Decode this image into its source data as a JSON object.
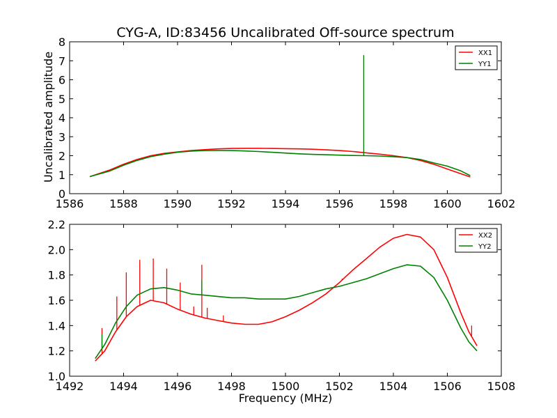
{
  "chart_data": [
    {
      "type": "line",
      "title": "CYG-A, ID:83456 Uncalibrated Off-source spectrum",
      "xlabel": "",
      "ylabel": "Uncalibrated amplitude",
      "xlim": [
        1586,
        1602
      ],
      "ylim": [
        0,
        8
      ],
      "xticks": [
        1586,
        1588,
        1590,
        1592,
        1594,
        1596,
        1598,
        1600,
        1602
      ],
      "yticks": [
        0,
        1,
        2,
        3,
        4,
        5,
        6,
        7,
        8
      ],
      "legend_position": "top-right",
      "grid": false,
      "series": [
        {
          "name": "XX1",
          "color": "#ff0000",
          "x": [
            1586.75,
            1587.5,
            1588.0,
            1588.5,
            1589.0,
            1589.5,
            1590.0,
            1590.5,
            1591.0,
            1591.5,
            1592.0,
            1592.5,
            1593.0,
            1593.5,
            1594.0,
            1594.5,
            1595.0,
            1595.5,
            1596.0,
            1596.5,
            1597.0,
            1597.5,
            1598.0,
            1598.5,
            1599.0,
            1599.5,
            1600.0,
            1600.5,
            1600.85
          ],
          "y": [
            0.9,
            1.25,
            1.55,
            1.8,
            2.0,
            2.12,
            2.2,
            2.27,
            2.32,
            2.36,
            2.38,
            2.39,
            2.39,
            2.38,
            2.37,
            2.36,
            2.34,
            2.31,
            2.27,
            2.22,
            2.15,
            2.08,
            2.0,
            1.9,
            1.75,
            1.55,
            1.3,
            1.05,
            0.88
          ],
          "spikes": []
        },
        {
          "name": "YY1",
          "color": "#008000",
          "x": [
            1586.75,
            1587.5,
            1588.0,
            1588.5,
            1589.0,
            1589.5,
            1590.0,
            1590.5,
            1591.0,
            1591.5,
            1592.0,
            1592.5,
            1593.0,
            1593.5,
            1594.0,
            1594.5,
            1595.0,
            1595.5,
            1596.0,
            1596.5,
            1597.0,
            1597.5,
            1598.0,
            1598.5,
            1599.0,
            1599.5,
            1600.0,
            1600.5,
            1600.85
          ],
          "y": [
            0.9,
            1.2,
            1.5,
            1.75,
            1.95,
            2.08,
            2.18,
            2.24,
            2.27,
            2.28,
            2.27,
            2.25,
            2.22,
            2.18,
            2.14,
            2.1,
            2.07,
            2.05,
            2.03,
            2.01,
            2.0,
            1.98,
            1.95,
            1.9,
            1.8,
            1.62,
            1.45,
            1.2,
            0.95
          ],
          "spikes": [
            {
              "x": 1596.9,
              "y": 7.3
            }
          ]
        }
      ]
    },
    {
      "type": "line",
      "title": "",
      "xlabel": "Frequency (MHz)",
      "ylabel": "",
      "xlim": [
        1492,
        1508
      ],
      "ylim": [
        1.0,
        2.2
      ],
      "xticks": [
        1492,
        1494,
        1496,
        1498,
        1500,
        1502,
        1504,
        1506,
        1508
      ],
      "yticks": [
        1.0,
        1.2,
        1.4,
        1.6,
        1.8,
        2.0,
        2.2
      ],
      "yticklabels": [
        "1.0",
        "1.2",
        "1.4",
        "1.6",
        "1.8",
        "2.0",
        "2.2"
      ],
      "legend_position": "top-right",
      "grid": false,
      "series": [
        {
          "name": "XX2",
          "color": "#ff0000",
          "x": [
            1492.95,
            1493.3,
            1493.7,
            1494.1,
            1494.5,
            1495.0,
            1495.5,
            1496.0,
            1496.5,
            1497.0,
            1497.5,
            1498.0,
            1498.5,
            1499.0,
            1499.5,
            1500.0,
            1500.5,
            1501.0,
            1501.5,
            1502.0,
            1502.5,
            1503.0,
            1503.5,
            1504.0,
            1504.5,
            1505.0,
            1505.5,
            1506.0,
            1506.5,
            1506.8,
            1507.1
          ],
          "y": [
            1.12,
            1.2,
            1.35,
            1.47,
            1.55,
            1.6,
            1.58,
            1.53,
            1.49,
            1.46,
            1.44,
            1.42,
            1.41,
            1.41,
            1.43,
            1.47,
            1.52,
            1.58,
            1.65,
            1.74,
            1.84,
            1.93,
            2.02,
            2.09,
            2.12,
            2.1,
            2.0,
            1.78,
            1.5,
            1.35,
            1.24
          ],
          "spikes": [
            {
              "x": 1493.2,
              "y": 1.38
            },
            {
              "x": 1493.75,
              "y": 1.63
            },
            {
              "x": 1494.1,
              "y": 1.82
            },
            {
              "x": 1494.6,
              "y": 1.92
            },
            {
              "x": 1495.1,
              "y": 1.93
            },
            {
              "x": 1495.6,
              "y": 1.85
            },
            {
              "x": 1496.1,
              "y": 1.74
            },
            {
              "x": 1496.6,
              "y": 1.55
            },
            {
              "x": 1496.9,
              "y": 1.88
            },
            {
              "x": 1497.1,
              "y": 1.54
            },
            {
              "x": 1497.7,
              "y": 1.48
            },
            {
              "x": 1502.1,
              "y": 1.77
            },
            {
              "x": 1506.9,
              "y": 1.4
            }
          ]
        },
        {
          "name": "YY2",
          "color": "#008000",
          "x": [
            1492.95,
            1493.3,
            1493.7,
            1494.1,
            1494.5,
            1495.0,
            1495.5,
            1496.0,
            1496.5,
            1497.0,
            1497.5,
            1498.0,
            1498.5,
            1499.0,
            1499.5,
            1500.0,
            1500.5,
            1501.0,
            1501.5,
            1502.0,
            1502.5,
            1503.0,
            1503.5,
            1504.0,
            1504.5,
            1505.0,
            1505.5,
            1506.0,
            1506.5,
            1506.8,
            1507.1
          ],
          "y": [
            1.14,
            1.25,
            1.42,
            1.55,
            1.64,
            1.69,
            1.7,
            1.68,
            1.65,
            1.64,
            1.63,
            1.62,
            1.62,
            1.61,
            1.61,
            1.61,
            1.63,
            1.66,
            1.69,
            1.71,
            1.74,
            1.77,
            1.81,
            1.85,
            1.88,
            1.87,
            1.78,
            1.6,
            1.38,
            1.27,
            1.2
          ],
          "spikes": [
            {
              "x": 1493.2,
              "y": 1.33
            },
            {
              "x": 1496.9,
              "y": 1.76
            }
          ]
        }
      ]
    }
  ]
}
